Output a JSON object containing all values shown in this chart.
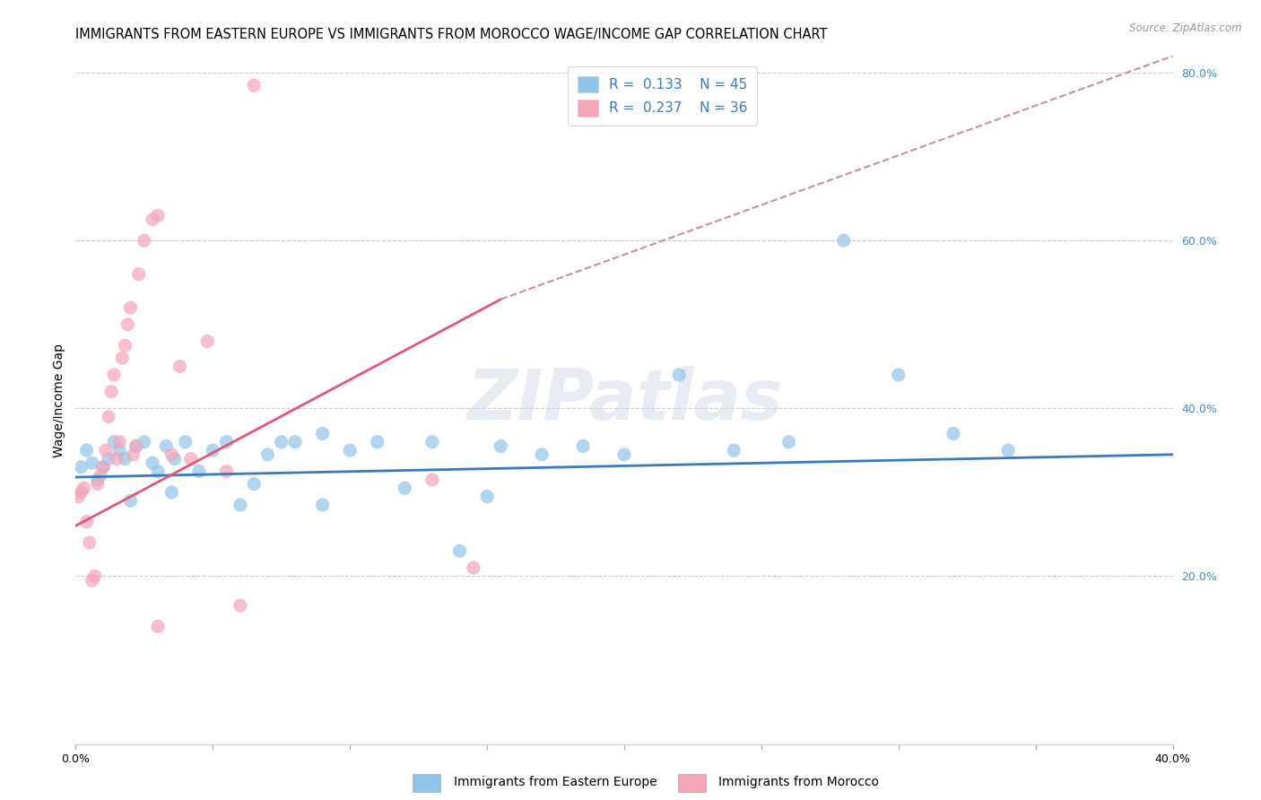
{
  "title": "IMMIGRANTS FROM EASTERN EUROPE VS IMMIGRANTS FROM MOROCCO WAGE/INCOME GAP CORRELATION CHART",
  "source": "Source: ZipAtlas.com",
  "ylabel": "Wage/Income Gap",
  "xlim": [
    0.0,
    0.4
  ],
  "ylim": [
    0.0,
    0.82
  ],
  "color_blue": "#90c4e8",
  "color_pink": "#f4a5b8",
  "color_blue_line": "#3a7bbf",
  "color_pink_line": "#e05878",
  "color_pink_dash": "#c89098",
  "legend_label1": "Immigrants from Eastern Europe",
  "legend_label2": "Immigrants from Morocco",
  "watermark": "ZIPatlas",
  "blue_x": [
    0.002,
    0.004,
    0.006,
    0.008,
    0.01,
    0.012,
    0.014,
    0.016,
    0.018,
    0.02,
    0.022,
    0.025,
    0.028,
    0.03,
    0.033,
    0.036,
    0.04,
    0.045,
    0.05,
    0.055,
    0.06,
    0.065,
    0.07,
    0.075,
    0.08,
    0.09,
    0.1,
    0.11,
    0.12,
    0.13,
    0.14,
    0.155,
    0.17,
    0.185,
    0.2,
    0.22,
    0.24,
    0.26,
    0.28,
    0.3,
    0.32,
    0.34,
    0.15,
    0.09,
    0.035
  ],
  "blue_y": [
    0.33,
    0.35,
    0.335,
    0.315,
    0.33,
    0.34,
    0.36,
    0.35,
    0.34,
    0.29,
    0.355,
    0.36,
    0.335,
    0.325,
    0.355,
    0.34,
    0.36,
    0.325,
    0.35,
    0.36,
    0.285,
    0.31,
    0.345,
    0.36,
    0.36,
    0.285,
    0.35,
    0.36,
    0.305,
    0.36,
    0.23,
    0.355,
    0.345,
    0.355,
    0.345,
    0.44,
    0.35,
    0.36,
    0.6,
    0.44,
    0.37,
    0.35,
    0.295,
    0.37,
    0.3
  ],
  "pink_x": [
    0.001,
    0.002,
    0.003,
    0.004,
    0.005,
    0.006,
    0.007,
    0.008,
    0.009,
    0.01,
    0.011,
    0.012,
    0.013,
    0.014,
    0.015,
    0.016,
    0.017,
    0.018,
    0.019,
    0.02,
    0.021,
    0.022,
    0.023,
    0.025,
    0.028,
    0.03,
    0.035,
    0.038,
    0.042,
    0.048,
    0.055,
    0.06,
    0.065,
    0.13,
    0.145,
    0.03
  ],
  "pink_y": [
    0.295,
    0.3,
    0.305,
    0.265,
    0.24,
    0.195,
    0.2,
    0.31,
    0.32,
    0.33,
    0.35,
    0.39,
    0.42,
    0.44,
    0.34,
    0.36,
    0.46,
    0.475,
    0.5,
    0.52,
    0.345,
    0.355,
    0.56,
    0.6,
    0.625,
    0.63,
    0.345,
    0.45,
    0.34,
    0.48,
    0.325,
    0.165,
    0.785,
    0.315,
    0.21,
    0.14
  ]
}
